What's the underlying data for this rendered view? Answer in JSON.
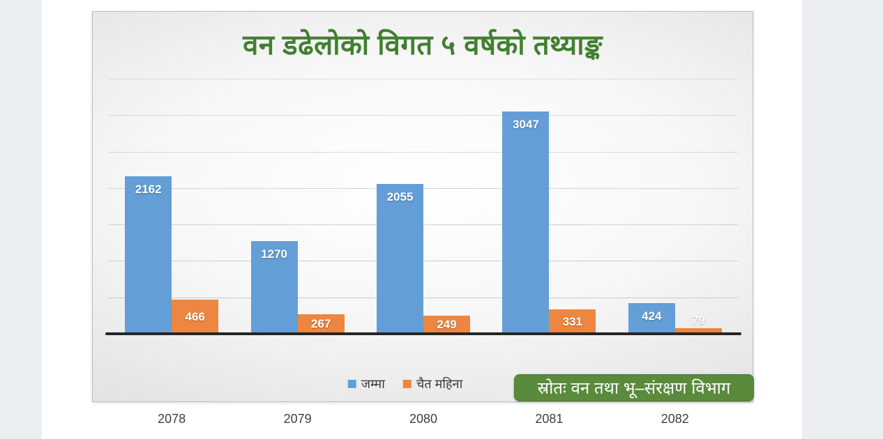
{
  "page": {
    "background_color": "#ffffff",
    "side_strip_color": "#eceff1"
  },
  "title": {
    "text": "वन डढेलोको विगत ५ वर्षको तथ्याङ्क",
    "color": "#417f30"
  },
  "chart_data": {
    "type": "bar",
    "title": "वन डढेलोको विगत ५ वर्षको तथ्याङ्क",
    "categories": [
      "2078",
      "2079",
      "2080",
      "2081",
      "2082"
    ],
    "series": [
      {
        "name": "जम्मा",
        "color": "#639fd6",
        "values": [
          2162,
          1270,
          2055,
          3047,
          424
        ]
      },
      {
        "name": "चैत महिना",
        "color": "#ec8640",
        "values": [
          466,
          267,
          249,
          331,
          79
        ]
      }
    ],
    "xlabel": "",
    "ylabel": "",
    "ylim": [
      0,
      3500
    ],
    "gridline_interval": 500,
    "grid": true,
    "y_axis_tick_labels_visible": false,
    "legend_position": "bottom",
    "value_labels": "on-bars"
  },
  "legend": {
    "items": [
      {
        "label": "जम्मा",
        "color": "#639fd6"
      },
      {
        "label": "चैत महिना",
        "color": "#ec8640"
      }
    ]
  },
  "source_box": {
    "label": "स्रोतः वन तथा भू–संरक्षण विभाग",
    "background_color": "#5a8a3c",
    "border_color": "#4d7a31",
    "text_color": "#ffffff"
  },
  "axis": {
    "line_color": "#262626",
    "gridline_color": "#c6c6c6",
    "category_label_color": "#3f3f3f"
  }
}
